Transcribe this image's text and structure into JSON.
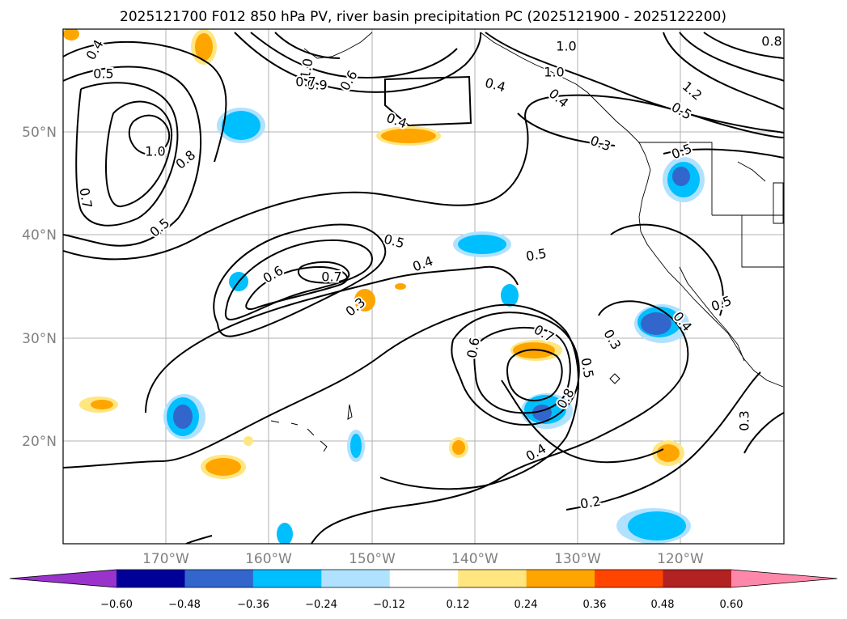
{
  "title": "2025121700 F012 850 hPa PV, river basin precipitation PC (2025121900 - 2025122200)",
  "map": {
    "lat_ticks": [
      "50°N",
      "40°N",
      "30°N",
      "20°N"
    ],
    "lon_ticks": [
      "170°W",
      "160°W",
      "150°W",
      "140°W",
      "130°W",
      "120°W"
    ],
    "grid": true
  },
  "colorbar": {
    "ticks": [
      "−0.60",
      "−0.48",
      "−0.36",
      "−0.24",
      "−0.12",
      "0.12",
      "0.24",
      "0.36",
      "0.48",
      "0.60"
    ],
    "colors": [
      "#9933cc",
      "#000099",
      "#3366cc",
      "#00bfff",
      "#b0e2ff",
      "#ffffff",
      "#ffe680",
      "#ffa500",
      "#ff4500",
      "#b22222",
      "#ff88aa"
    ]
  },
  "contour_labels": [
    {
      "text": "0.4"
    },
    {
      "text": "0.5"
    },
    {
      "text": "1.0"
    },
    {
      "text": "0.8"
    },
    {
      "text": "0.7"
    },
    {
      "text": "0.5"
    },
    {
      "text": "0.4"
    },
    {
      "text": "1.0"
    },
    {
      "text": "0.4"
    },
    {
      "text": "0.8"
    },
    {
      "text": "1.0"
    },
    {
      "text": "0.9"
    },
    {
      "text": "0.7"
    },
    {
      "text": "0.6"
    },
    {
      "text": "1.0"
    },
    {
      "text": "0.4"
    },
    {
      "text": "0.3"
    },
    {
      "text": "0.5"
    },
    {
      "text": "1.2"
    },
    {
      "text": "0.5"
    },
    {
      "text": "0.5"
    },
    {
      "text": "0.6"
    },
    {
      "text": "0.7"
    },
    {
      "text": "0.3"
    },
    {
      "text": "0.4"
    },
    {
      "text": "0.5"
    },
    {
      "text": "0.6"
    },
    {
      "text": "0.7"
    },
    {
      "text": "0.5"
    },
    {
      "text": "0.8"
    },
    {
      "text": "0.4"
    },
    {
      "text": "0.3"
    },
    {
      "text": "0.4"
    },
    {
      "text": "0.5"
    },
    {
      "text": "0.3"
    },
    {
      "text": "0.2"
    }
  ]
}
